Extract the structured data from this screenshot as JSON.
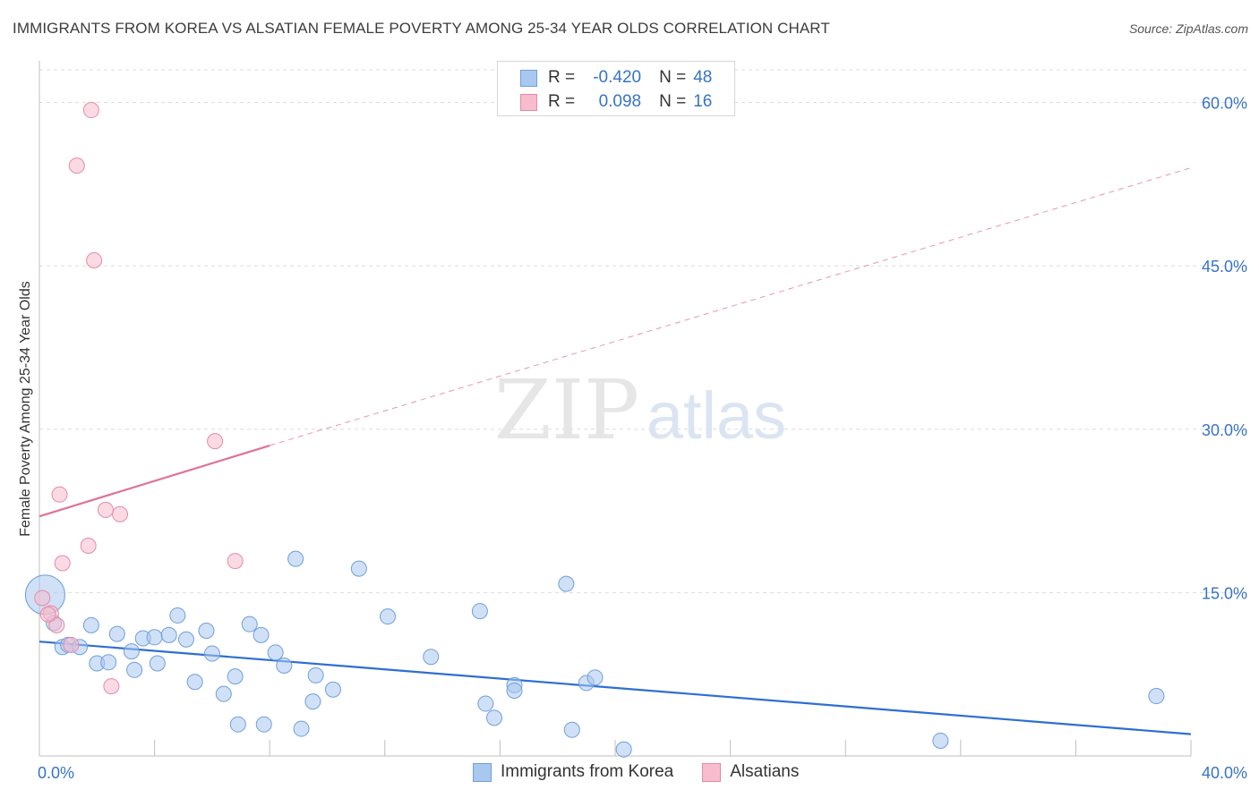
{
  "header": {
    "title": "IMMIGRANTS FROM KOREA VS ALSATIAN FEMALE POVERTY AMONG 25-34 YEAR OLDS CORRELATION CHART",
    "source": "Source: ZipAtlas.com"
  },
  "watermark": {
    "part1": "ZIP",
    "part2": "atlas"
  },
  "legend": {
    "rows": [
      {
        "r_label": "R =",
        "r_value": "-0.420",
        "n_label": "N =",
        "n_value": "48",
        "color": "#a9c8f0",
        "border": "#6f9fd9"
      },
      {
        "r_label": "R =",
        "r_value": "0.098",
        "n_label": "N =",
        "n_value": "16",
        "color": "#f7bccd",
        "border": "#e58aa6"
      }
    ]
  },
  "bottom_legend": {
    "items": [
      {
        "label": "Immigrants from Korea",
        "color": "#a9c8f0",
        "border": "#6f9fd9"
      },
      {
        "label": "Alsatians",
        "color": "#f7bccd",
        "border": "#e58aa6"
      }
    ]
  },
  "chart_data": {
    "type": "scatter",
    "title": "IMMIGRANTS FROM KOREA VS ALSATIAN FEMALE POVERTY AMONG 25-34 YEAR OLDS CORRELATION CHART",
    "xlabel": "",
    "ylabel": "Female Poverty Among 25-34 Year Olds",
    "xlim": [
      0,
      40
    ],
    "ylim": [
      0,
      63
    ],
    "x_tick_labels": [
      {
        "value": 0,
        "label": "0.0%"
      },
      {
        "value": 40,
        "label": "40.0%"
      }
    ],
    "y_tick_labels": [
      {
        "value": 15,
        "label": "15.0%"
      },
      {
        "value": 30,
        "label": "30.0%"
      },
      {
        "value": 45,
        "label": "45.0%"
      },
      {
        "value": 60,
        "label": "60.0%"
      }
    ],
    "series": [
      {
        "name": "Immigrants from Korea",
        "color": "#a9c8f0",
        "stroke": "#6f9fd9",
        "trend_color": "#2e6fd0",
        "trend": {
          "x": [
            0,
            40
          ],
          "y": [
            10.5,
            2.0
          ],
          "dashed_x_end": 40
        },
        "points": [
          {
            "x": 0.2,
            "y": 14.8,
            "big": true
          },
          {
            "x": 0.5,
            "y": 12.2
          },
          {
            "x": 0.8,
            "y": 10.0
          },
          {
            "x": 1.0,
            "y": 10.2
          },
          {
            "x": 1.4,
            "y": 10.0
          },
          {
            "x": 1.8,
            "y": 12.0
          },
          {
            "x": 2.0,
            "y": 8.5
          },
          {
            "x": 2.4,
            "y": 8.6
          },
          {
            "x": 2.7,
            "y": 11.2
          },
          {
            "x": 3.2,
            "y": 9.6
          },
          {
            "x": 3.3,
            "y": 7.9
          },
          {
            "x": 3.6,
            "y": 10.8
          },
          {
            "x": 4.0,
            "y": 10.9
          },
          {
            "x": 4.1,
            "y": 8.5
          },
          {
            "x": 4.5,
            "y": 11.1
          },
          {
            "x": 4.8,
            "y": 12.9
          },
          {
            "x": 5.1,
            "y": 10.7
          },
          {
            "x": 5.4,
            "y": 6.8
          },
          {
            "x": 5.8,
            "y": 11.5
          },
          {
            "x": 6.0,
            "y": 9.4
          },
          {
            "x": 6.4,
            "y": 5.7
          },
          {
            "x": 6.8,
            "y": 7.3
          },
          {
            "x": 6.9,
            "y": 2.9
          },
          {
            "x": 7.3,
            "y": 12.1
          },
          {
            "x": 7.7,
            "y": 11.1
          },
          {
            "x": 7.8,
            "y": 2.9
          },
          {
            "x": 8.2,
            "y": 9.5
          },
          {
            "x": 8.5,
            "y": 8.3
          },
          {
            "x": 8.9,
            "y": 18.1
          },
          {
            "x": 9.1,
            "y": 2.5
          },
          {
            "x": 9.5,
            "y": 5.0
          },
          {
            "x": 9.6,
            "y": 7.4
          },
          {
            "x": 10.2,
            "y": 6.1
          },
          {
            "x": 11.1,
            "y": 17.2
          },
          {
            "x": 12.1,
            "y": 12.8
          },
          {
            "x": 13.6,
            "y": 9.1
          },
          {
            "x": 15.3,
            "y": 13.3
          },
          {
            "x": 15.5,
            "y": 4.8
          },
          {
            "x": 15.8,
            "y": 3.5
          },
          {
            "x": 16.5,
            "y": 6.5
          },
          {
            "x": 16.5,
            "y": 6.0
          },
          {
            "x": 18.3,
            "y": 15.8
          },
          {
            "x": 18.5,
            "y": 2.4
          },
          {
            "x": 19.0,
            "y": 6.7
          },
          {
            "x": 19.3,
            "y": 7.2
          },
          {
            "x": 20.3,
            "y": 0.6
          },
          {
            "x": 31.3,
            "y": 1.4
          },
          {
            "x": 38.8,
            "y": 5.5
          }
        ]
      },
      {
        "name": "Alsatians",
        "color": "#f7bccd",
        "stroke": "#e58aa6",
        "trend_color": "#e0719a",
        "trend": {
          "x": [
            0,
            8.0
          ],
          "y": [
            22.0,
            28.5
          ],
          "dashed_x_end": 40,
          "dashed_y_end": 54.0
        },
        "points": [
          {
            "x": 0.1,
            "y": 14.5
          },
          {
            "x": 0.4,
            "y": 13.1
          },
          {
            "x": 0.6,
            "y": 12.0
          },
          {
            "x": 0.7,
            "y": 24.0
          },
          {
            "x": 0.8,
            "y": 17.7
          },
          {
            "x": 1.1,
            "y": 10.2
          },
          {
            "x": 1.3,
            "y": 54.2
          },
          {
            "x": 1.7,
            "y": 19.3
          },
          {
            "x": 1.8,
            "y": 59.3
          },
          {
            "x": 1.9,
            "y": 45.5
          },
          {
            "x": 2.3,
            "y": 22.6
          },
          {
            "x": 2.5,
            "y": 6.4
          },
          {
            "x": 2.8,
            "y": 22.2
          },
          {
            "x": 6.1,
            "y": 28.9
          },
          {
            "x": 6.8,
            "y": 17.9
          },
          {
            "x": 0.3,
            "y": 13.0
          }
        ]
      }
    ],
    "grid": true,
    "legend_position": "top-center"
  }
}
